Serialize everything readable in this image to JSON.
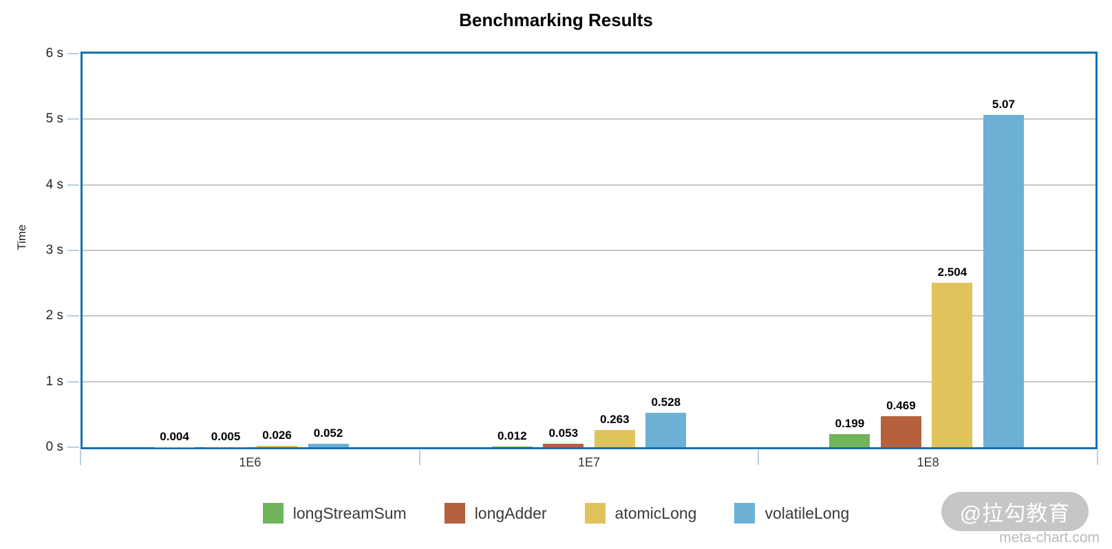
{
  "chart_data": {
    "type": "bar",
    "title": "Benchmarking Results",
    "xlabel": "",
    "ylabel": "Time",
    "categories": [
      "1E6",
      "1E7",
      "1E8"
    ],
    "series": [
      {
        "name": "longStreamSum",
        "color": "#72b45c",
        "values": [
          0.004,
          0.012,
          0.199
        ],
        "labels": [
          "0.004",
          "0.012",
          "0.199"
        ]
      },
      {
        "name": "longAdder",
        "color": "#b5613e",
        "values": [
          0.005,
          0.053,
          0.469
        ],
        "labels": [
          "0.005",
          "0.053",
          "0.469"
        ]
      },
      {
        "name": "atomicLong",
        "color": "#e0c35d",
        "values": [
          0.026,
          0.263,
          2.504
        ],
        "labels": [
          "0.026",
          "0.263",
          "2.504"
        ]
      },
      {
        "name": "volatileLong",
        "color": "#6cb0d6",
        "values": [
          0.052,
          0.528,
          5.07
        ],
        "labels": [
          "0.052",
          "0.528",
          "5.07"
        ]
      }
    ],
    "ylim": [
      0,
      6
    ],
    "yticks": [
      "0 s",
      "1 s",
      "2 s",
      "3 s",
      "4 s",
      "5 s",
      "6 s"
    ],
    "grid": true,
    "legend_position": "bottom"
  },
  "colors": {
    "plot_border": "#1470b4",
    "gridline": "#c6c6c6",
    "axis_tick": "#b8cede",
    "legend_text": "#3a3a3a",
    "watermark_pill": "#c2c2c2",
    "watermark_text": "#ffffff",
    "watermark_site_text": "#b9b9b9"
  },
  "watermark": {
    "badge": "@拉勾教育",
    "site": "meta-chart.com"
  }
}
